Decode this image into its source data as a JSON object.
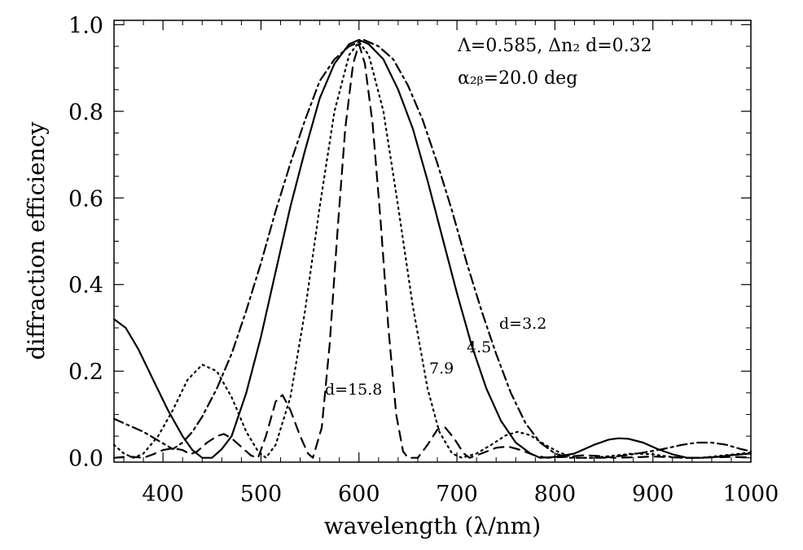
{
  "chart_data": {
    "type": "line",
    "xlabel": "wavelength (λ/nm)",
    "ylabel": "diffraction efficiency",
    "xlim": [
      350,
      1000
    ],
    "ylim": [
      -0.01,
      1.01
    ],
    "x_ticks": [
      400,
      500,
      600,
      700,
      800,
      900,
      1000
    ],
    "x_tick_labels": [
      "400",
      "500",
      "600",
      "700",
      "800",
      "900",
      "1000"
    ],
    "y_ticks": [
      0.0,
      0.2,
      0.4,
      0.6,
      0.8,
      1.0
    ],
    "y_tick_labels": [
      "0.0",
      "0.2",
      "0.4",
      "0.6",
      "0.8",
      "1.0"
    ],
    "grid": false,
    "annotations": {
      "line1": "Λ=0.585, Δn₂ d=0.32",
      "line2": "α₂ᵦ=20.0 deg"
    },
    "series": [
      {
        "name": "d=3.2",
        "label": "d=3.2",
        "style": "dashdot",
        "points": [
          [
            350,
            0.09
          ],
          [
            365,
            0.075
          ],
          [
            380,
            0.06
          ],
          [
            395,
            0.04
          ],
          [
            410,
            0.02
          ],
          [
            420,
            0.035
          ],
          [
            430,
            0.06
          ],
          [
            440,
            0.095
          ],
          [
            455,
            0.16
          ],
          [
            470,
            0.24
          ],
          [
            485,
            0.34
          ],
          [
            500,
            0.45
          ],
          [
            515,
            0.57
          ],
          [
            530,
            0.68
          ],
          [
            545,
            0.78
          ],
          [
            560,
            0.87
          ],
          [
            575,
            0.92
          ],
          [
            590,
            0.95
          ],
          [
            605,
            0.965
          ],
          [
            620,
            0.95
          ],
          [
            635,
            0.92
          ],
          [
            650,
            0.86
          ],
          [
            665,
            0.78
          ],
          [
            680,
            0.68
          ],
          [
            695,
            0.57
          ],
          [
            710,
            0.45
          ],
          [
            725,
            0.34
          ],
          [
            740,
            0.24
          ],
          [
            755,
            0.15
          ],
          [
            770,
            0.08
          ],
          [
            785,
            0.035
          ],
          [
            800,
            0.01
          ],
          [
            815,
            0.0
          ],
          [
            830,
            0.0
          ],
          [
            850,
            0.0
          ],
          [
            870,
            0.005
          ],
          [
            890,
            0.012
          ],
          [
            910,
            0.02
          ],
          [
            930,
            0.03
          ],
          [
            945,
            0.035
          ],
          [
            960,
            0.035
          ],
          [
            975,
            0.03
          ],
          [
            990,
            0.02
          ],
          [
            1000,
            0.015
          ]
        ]
      },
      {
        "name": "4.5",
        "label": "4.5",
        "style": "solid",
        "points": [
          [
            350,
            0.32
          ],
          [
            362,
            0.3
          ],
          [
            375,
            0.25
          ],
          [
            390,
            0.18
          ],
          [
            405,
            0.11
          ],
          [
            420,
            0.05
          ],
          [
            430,
            0.018
          ],
          [
            440,
            0.0
          ],
          [
            450,
            0.0
          ],
          [
            460,
            0.02
          ],
          [
            470,
            0.05
          ],
          [
            485,
            0.15
          ],
          [
            500,
            0.28
          ],
          [
            515,
            0.43
          ],
          [
            530,
            0.58
          ],
          [
            545,
            0.71
          ],
          [
            560,
            0.83
          ],
          [
            575,
            0.91
          ],
          [
            590,
            0.955
          ],
          [
            600,
            0.965
          ],
          [
            610,
            0.955
          ],
          [
            625,
            0.92
          ],
          [
            640,
            0.85
          ],
          [
            655,
            0.76
          ],
          [
            670,
            0.64
          ],
          [
            685,
            0.51
          ],
          [
            700,
            0.38
          ],
          [
            715,
            0.26
          ],
          [
            730,
            0.16
          ],
          [
            745,
            0.085
          ],
          [
            760,
            0.035
          ],
          [
            775,
            0.01
          ],
          [
            785,
            0.0
          ],
          [
            800,
            0.002
          ],
          [
            820,
            0.01
          ],
          [
            840,
            0.03
          ],
          [
            855,
            0.042
          ],
          [
            865,
            0.045
          ],
          [
            875,
            0.044
          ],
          [
            890,
            0.035
          ],
          [
            905,
            0.02
          ],
          [
            920,
            0.008
          ],
          [
            935,
            0.0
          ],
          [
            950,
            0.0
          ],
          [
            965,
            0.002
          ],
          [
            980,
            0.006
          ],
          [
            1000,
            0.01
          ]
        ]
      },
      {
        "name": "7.9",
        "label": "7.9",
        "style": "dotted",
        "points": [
          [
            350,
            0.03
          ],
          [
            360,
            0.01
          ],
          [
            370,
            0.0
          ],
          [
            380,
            0.01
          ],
          [
            395,
            0.05
          ],
          [
            410,
            0.11
          ],
          [
            425,
            0.18
          ],
          [
            440,
            0.215
          ],
          [
            455,
            0.2
          ],
          [
            470,
            0.14
          ],
          [
            485,
            0.06
          ],
          [
            497,
            0.015
          ],
          [
            505,
            0.0
          ],
          [
            515,
            0.03
          ],
          [
            530,
            0.14
          ],
          [
            545,
            0.34
          ],
          [
            560,
            0.58
          ],
          [
            575,
            0.8
          ],
          [
            590,
            0.93
          ],
          [
            600,
            0.96
          ],
          [
            610,
            0.93
          ],
          [
            625,
            0.8
          ],
          [
            640,
            0.58
          ],
          [
            655,
            0.35
          ],
          [
            670,
            0.16
          ],
          [
            682,
            0.06
          ],
          [
            695,
            0.01
          ],
          [
            705,
            0.0
          ],
          [
            720,
            0.01
          ],
          [
            735,
            0.03
          ],
          [
            750,
            0.052
          ],
          [
            762,
            0.06
          ],
          [
            775,
            0.052
          ],
          [
            790,
            0.03
          ],
          [
            805,
            0.012
          ],
          [
            820,
            0.0
          ],
          [
            840,
            0.0
          ],
          [
            860,
            0.005
          ],
          [
            880,
            0.01
          ],
          [
            900,
            0.008
          ],
          [
            915,
            0.003
          ],
          [
            930,
            0.0
          ],
          [
            950,
            0.0
          ],
          [
            970,
            0.005
          ],
          [
            990,
            0.01
          ],
          [
            1000,
            0.012
          ]
        ]
      },
      {
        "name": "d=15.8",
        "label": "d=15.8",
        "style": "dashed",
        "points": [
          [
            350,
            0.0
          ],
          [
            365,
            0.003
          ],
          [
            380,
            0.0
          ],
          [
            390,
            0.008
          ],
          [
            400,
            0.018
          ],
          [
            410,
            0.022
          ],
          [
            420,
            0.018
          ],
          [
            428,
            0.008
          ],
          [
            435,
            0.015
          ],
          [
            445,
            0.035
          ],
          [
            455,
            0.05
          ],
          [
            462,
            0.055
          ],
          [
            470,
            0.045
          ],
          [
            480,
            0.025
          ],
          [
            490,
            0.005
          ],
          [
            497,
            0.0
          ],
          [
            505,
            0.05
          ],
          [
            515,
            0.13
          ],
          [
            522,
            0.145
          ],
          [
            530,
            0.11
          ],
          [
            540,
            0.05
          ],
          [
            548,
            0.01
          ],
          [
            553,
            0.0
          ],
          [
            562,
            0.07
          ],
          [
            570,
            0.26
          ],
          [
            578,
            0.52
          ],
          [
            586,
            0.76
          ],
          [
            594,
            0.91
          ],
          [
            600,
            0.955
          ],
          [
            606,
            0.91
          ],
          [
            614,
            0.77
          ],
          [
            622,
            0.55
          ],
          [
            630,
            0.3
          ],
          [
            638,
            0.1
          ],
          [
            645,
            0.015
          ],
          [
            650,
            0.0
          ],
          [
            660,
            0.0
          ],
          [
            670,
            0.03
          ],
          [
            680,
            0.065
          ],
          [
            688,
            0.07
          ],
          [
            697,
            0.045
          ],
          [
            707,
            0.01
          ],
          [
            713,
            0.0
          ],
          [
            725,
            0.01
          ],
          [
            740,
            0.023
          ],
          [
            752,
            0.026
          ],
          [
            765,
            0.018
          ],
          [
            780,
            0.005
          ],
          [
            792,
            0.0
          ],
          [
            810,
            0.002
          ],
          [
            830,
            0.006
          ],
          [
            845,
            0.004
          ],
          [
            860,
            0.0
          ],
          [
            880,
            0.001
          ],
          [
            900,
            0.003
          ],
          [
            920,
            0.001
          ],
          [
            940,
            0.0
          ],
          [
            960,
            0.001
          ],
          [
            980,
            0.002
          ],
          [
            1000,
            0.001
          ]
        ]
      }
    ]
  }
}
